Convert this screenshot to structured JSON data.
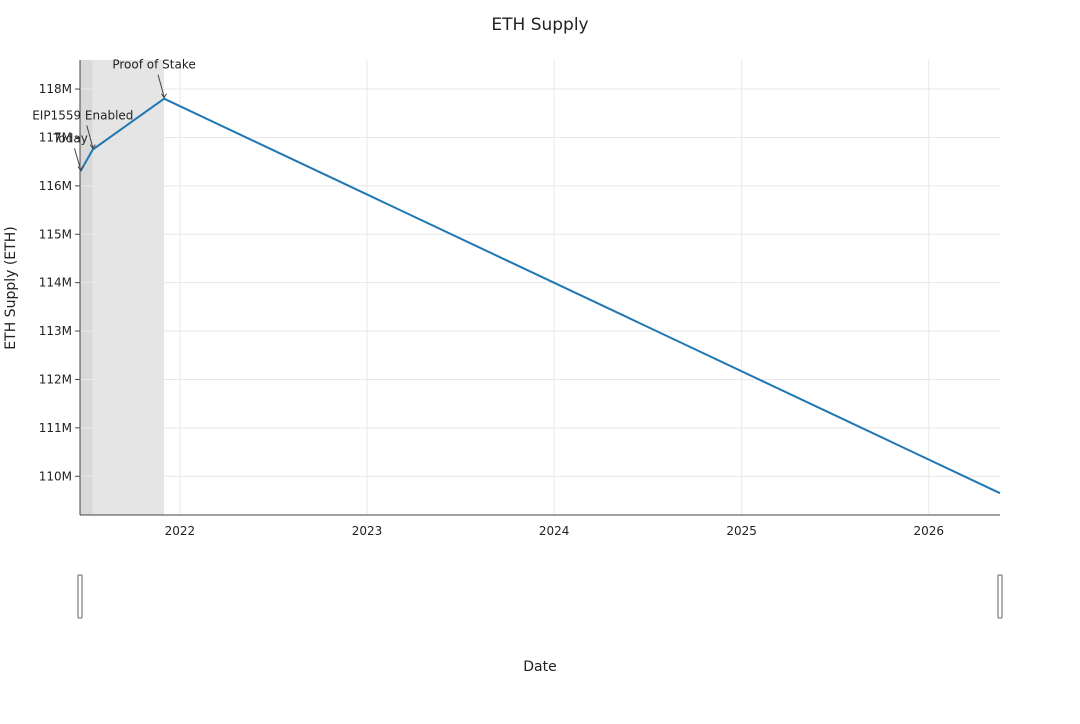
{
  "chart_data": {
    "type": "line",
    "title": "ETH Supply",
    "xlabel": "Date",
    "ylabel": "ETH Supply (ETH)",
    "x_axis_type": "date",
    "xlim": [
      "2021-06-20",
      "2026-05-20"
    ],
    "ylim": [
      109.2,
      118.6
    ],
    "y_unit": "M",
    "x_ticks": [
      {
        "date": "2022-01-01",
        "label": "2022"
      },
      {
        "date": "2023-01-01",
        "label": "2023"
      },
      {
        "date": "2024-01-01",
        "label": "2024"
      },
      {
        "date": "2025-01-01",
        "label": "2025"
      },
      {
        "date": "2026-01-01",
        "label": "2026"
      }
    ],
    "y_ticks": [
      110,
      111,
      112,
      113,
      114,
      115,
      116,
      117,
      118
    ],
    "y_tick_labels": [
      "110M",
      "111M",
      "112M",
      "113M",
      "114M",
      "115M",
      "116M",
      "117M",
      "118M"
    ],
    "grid": true,
    "series": [
      {
        "color": "#1f77b4",
        "points": [
          {
            "x": "2021-06-21",
            "y": 116.3
          },
          {
            "x": "2021-07-15",
            "y": 116.75
          },
          {
            "x": "2021-12-01",
            "y": 117.8
          },
          {
            "x": "2026-05-20",
            "y": 109.65
          }
        ]
      }
    ],
    "shaded_regions": [
      {
        "x0": "2021-06-21",
        "x1": "2021-07-15",
        "color": "#d9d9d9"
      },
      {
        "x0": "2021-07-15",
        "x1": "2021-12-01",
        "color": "#e5e5e5"
      }
    ],
    "annotations": [
      {
        "text": "Today",
        "x": "2021-06-21",
        "y": 116.3,
        "arrow": true
      },
      {
        "text": "EIP1559 Enabled",
        "x": "2021-07-15",
        "y": 116.75,
        "arrow": true
      },
      {
        "text": "Proof of Stake",
        "x": "2021-12-01",
        "y": 117.8,
        "arrow": true
      }
    ],
    "range_slider": true,
    "legend": "none"
  }
}
